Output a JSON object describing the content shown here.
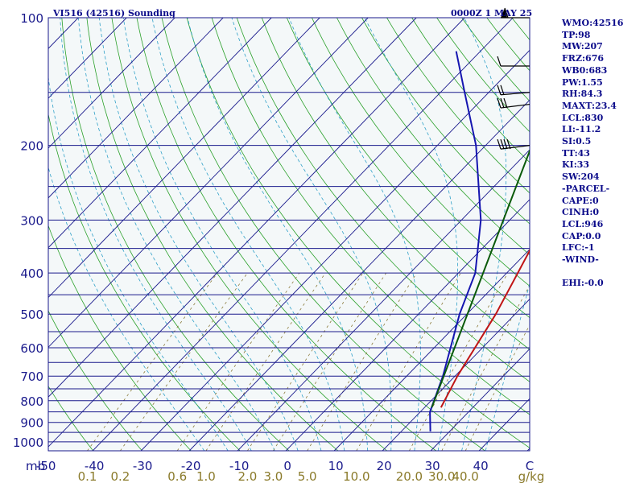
{
  "header": {
    "title": "VI516 (42516) Sounding",
    "time": "0000Z  1 MAY 25"
  },
  "colors": {
    "background": "#f4f8f9",
    "isobar": "#1a1a8c",
    "isotherm": "#1a1a8c",
    "dry_adiabat": "#2aa02a",
    "moist_adiabat": "#2fa0c8",
    "mixing_ratio": "#8a7a3a",
    "temperature": "#c01515",
    "dewpoint": "#1515b0",
    "parcel": "#0a5a0a",
    "axis_text": "#1a1a8c",
    "mixing_text": "#8a7a2a",
    "wind_barb": "#000000"
  },
  "stats": [
    "WMO:42516",
    "TP:98",
    "MW:207",
    "FRZ:676",
    "WB0:683",
    "PW:1.55",
    "RH:84.3",
    "MAXT:23.4",
    "LCL:830",
    "LI:-11.2",
    "SI:0.5",
    "TT:43",
    "KI:33",
    "SW:204",
    "-PARCEL-",
    "CAPE:0",
    "CINH:0",
    "LCL:946",
    "CAP:0.0",
    "LFC:-1",
    "-WIND-",
    "",
    "EHI:-0.0"
  ],
  "chart_data": {
    "type": "line",
    "diagram": "skew-t log-p",
    "title": "VI516 (42516) Sounding",
    "xlabel": "",
    "ylabel": "mb",
    "pressure_axis": {
      "scale": "log",
      "range_mb": [
        100,
        1050
      ],
      "tick_labels": [
        "100",
        "200",
        "300",
        "400",
        "500",
        "600",
        "700",
        "800",
        "900",
        "1000"
      ],
      "tick_values": [
        100,
        200,
        300,
        400,
        500,
        600,
        700,
        800,
        900,
        1000
      ],
      "unit": "mb"
    },
    "isobars_mb": [
      100,
      150,
      200,
      250,
      300,
      350,
      400,
      450,
      500,
      550,
      600,
      650,
      700,
      750,
      800,
      850,
      900,
      950,
      1000,
      1050
    ],
    "temperature_axis": {
      "tick_labels": [
        "-50",
        "-40",
        "-30",
        "-20",
        "-10",
        "0",
        "10",
        "20",
        "30",
        "40",
        "C"
      ],
      "tick_values": [
        -50,
        -40,
        -30,
        -20,
        -10,
        0,
        10,
        20,
        30,
        40
      ],
      "unit": "C"
    },
    "mixing_ratio_axis": {
      "tick_labels": [
        "0.1",
        "0.2",
        "0.6",
        "1.0",
        "2.0",
        "3.0",
        "5.0",
        "10.0",
        "20.0",
        "30.0",
        "40.0",
        "g/kg"
      ],
      "unit": "g/kg"
    },
    "series": [
      {
        "name": "",
        "kind": "temperature",
        "points": [
          {
            "p": 830,
            "t": 23.4
          },
          {
            "p": 700,
            "t": 20.5
          },
          {
            "p": 500,
            "t": 16.0
          },
          {
            "p": 300,
            "t": 7.5
          },
          {
            "p": 200,
            "t": 1.0
          },
          {
            "p": 130,
            "t": -8.0
          },
          {
            "p": 100,
            "t": -14.0
          }
        ]
      },
      {
        "name": "",
        "kind": "dewpoint",
        "points": [
          {
            "p": 945,
            "t": 26.0
          },
          {
            "p": 920,
            "t": 25.0
          },
          {
            "p": 850,
            "t": 22.0
          },
          {
            "p": 700,
            "t": 17.5
          },
          {
            "p": 500,
            "t": 8.5
          },
          {
            "p": 400,
            "t": 3.5
          },
          {
            "p": 300,
            "t": -6.0
          },
          {
            "p": 200,
            "t": -22.0
          },
          {
            "p": 150,
            "t": -35.0
          },
          {
            "p": 120,
            "t": -45.0
          }
        ]
      },
      {
        "name": "",
        "kind": "parcel",
        "points": [
          {
            "p": 830,
            "t": 21.5
          },
          {
            "p": 100,
            "t": -26.0
          }
        ]
      }
    ],
    "wind_barbs": [
      {
        "p": 100,
        "dir_deg": 270,
        "speed_kt": 60
      },
      {
        "p": 130,
        "dir_deg": 270,
        "speed_kt": 10
      },
      {
        "p": 150,
        "dir_deg": 280,
        "speed_kt": 20
      },
      {
        "p": 160,
        "dir_deg": 285,
        "speed_kt": 30
      },
      {
        "p": 200,
        "dir_deg": 285,
        "speed_kt": 40
      }
    ],
    "grid": true
  }
}
